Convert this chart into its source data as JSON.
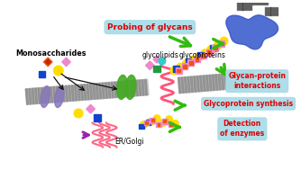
{
  "bg_color": "#ffffff",
  "label_monosaccharides": "Monosaccharides",
  "label_glycolipids": "glycolipids",
  "label_glycoproteins": "glycoproteins",
  "label_erGolgi": "ER/Golgi",
  "box_probing": "Probing of glycans",
  "box_glycan_protein": "Glycan-protein\ninteractions",
  "box_glycoprotein_synthesis": "Glycoprotein synthesis",
  "box_detection": "Detection\nof enzymes",
  "box_color": "#aadde8",
  "box_text_color": "#dd0000",
  "green_oval_color": "#44aa22",
  "purple_oval_color": "#8877bb",
  "helix_color": "#ff5577",
  "yellow_circle": "#ffdd00",
  "blue_square": "#1144cc",
  "pink_square": "#ee88cc",
  "orange_square": "#ee5511",
  "green_square": "#229944",
  "cyan_circle": "#33cccc",
  "arrow_green": "#33bb11",
  "arrow_purple": "#9922aa",
  "protein_blue": "#3355cc"
}
